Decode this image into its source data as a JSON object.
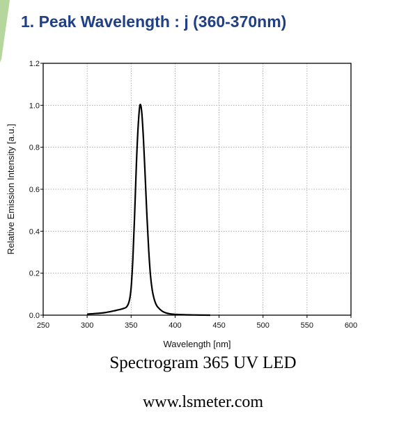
{
  "header": {
    "title": "1. Peak Wavelength : j (360-370nm)"
  },
  "captions": {
    "main": "Spectrogram 365 UV LED",
    "url": "www.lsmeter.com"
  },
  "colors": {
    "title": "#1f3f86",
    "accent": "#a8d08d",
    "curve": "#000000",
    "grid": "#9a9a9a"
  },
  "chart_data": {
    "type": "line",
    "xlabel": "Wavelength [nm]",
    "ylabel": "Relative Emission Intensity [a.u.]",
    "xlim": [
      250,
      600
    ],
    "ylim": [
      0,
      1.2
    ],
    "xticks": [
      250,
      300,
      350,
      400,
      450,
      500,
      550,
      600
    ],
    "yticks": [
      0.0,
      0.2,
      0.4,
      0.6,
      0.8,
      1.0,
      1.2
    ],
    "xtick_labels": [
      "250",
      "300",
      "350",
      "400",
      "450",
      "500",
      "550",
      "600"
    ],
    "ytick_labels": [
      "0.0",
      "0.2",
      "0.4",
      "0.6",
      "0.8",
      "1.0",
      "1.2"
    ],
    "grid": true,
    "grid_style": "dotted",
    "series": [
      {
        "x": [
          300,
          310,
          320,
          330,
          335,
          340,
          345,
          348,
          350,
          352,
          354,
          356,
          358,
          360,
          362,
          364,
          366,
          368,
          370,
          372,
          374,
          376,
          378,
          380,
          385,
          390,
          395,
          400,
          410,
          420,
          440
        ],
        "y": [
          0.005,
          0.008,
          0.012,
          0.02,
          0.025,
          0.03,
          0.04,
          0.07,
          0.13,
          0.27,
          0.48,
          0.72,
          0.9,
          1.0,
          0.97,
          0.84,
          0.66,
          0.47,
          0.31,
          0.19,
          0.12,
          0.08,
          0.055,
          0.04,
          0.02,
          0.01,
          0.006,
          0.004,
          0.002,
          0.001,
          0.0
        ]
      }
    ]
  }
}
